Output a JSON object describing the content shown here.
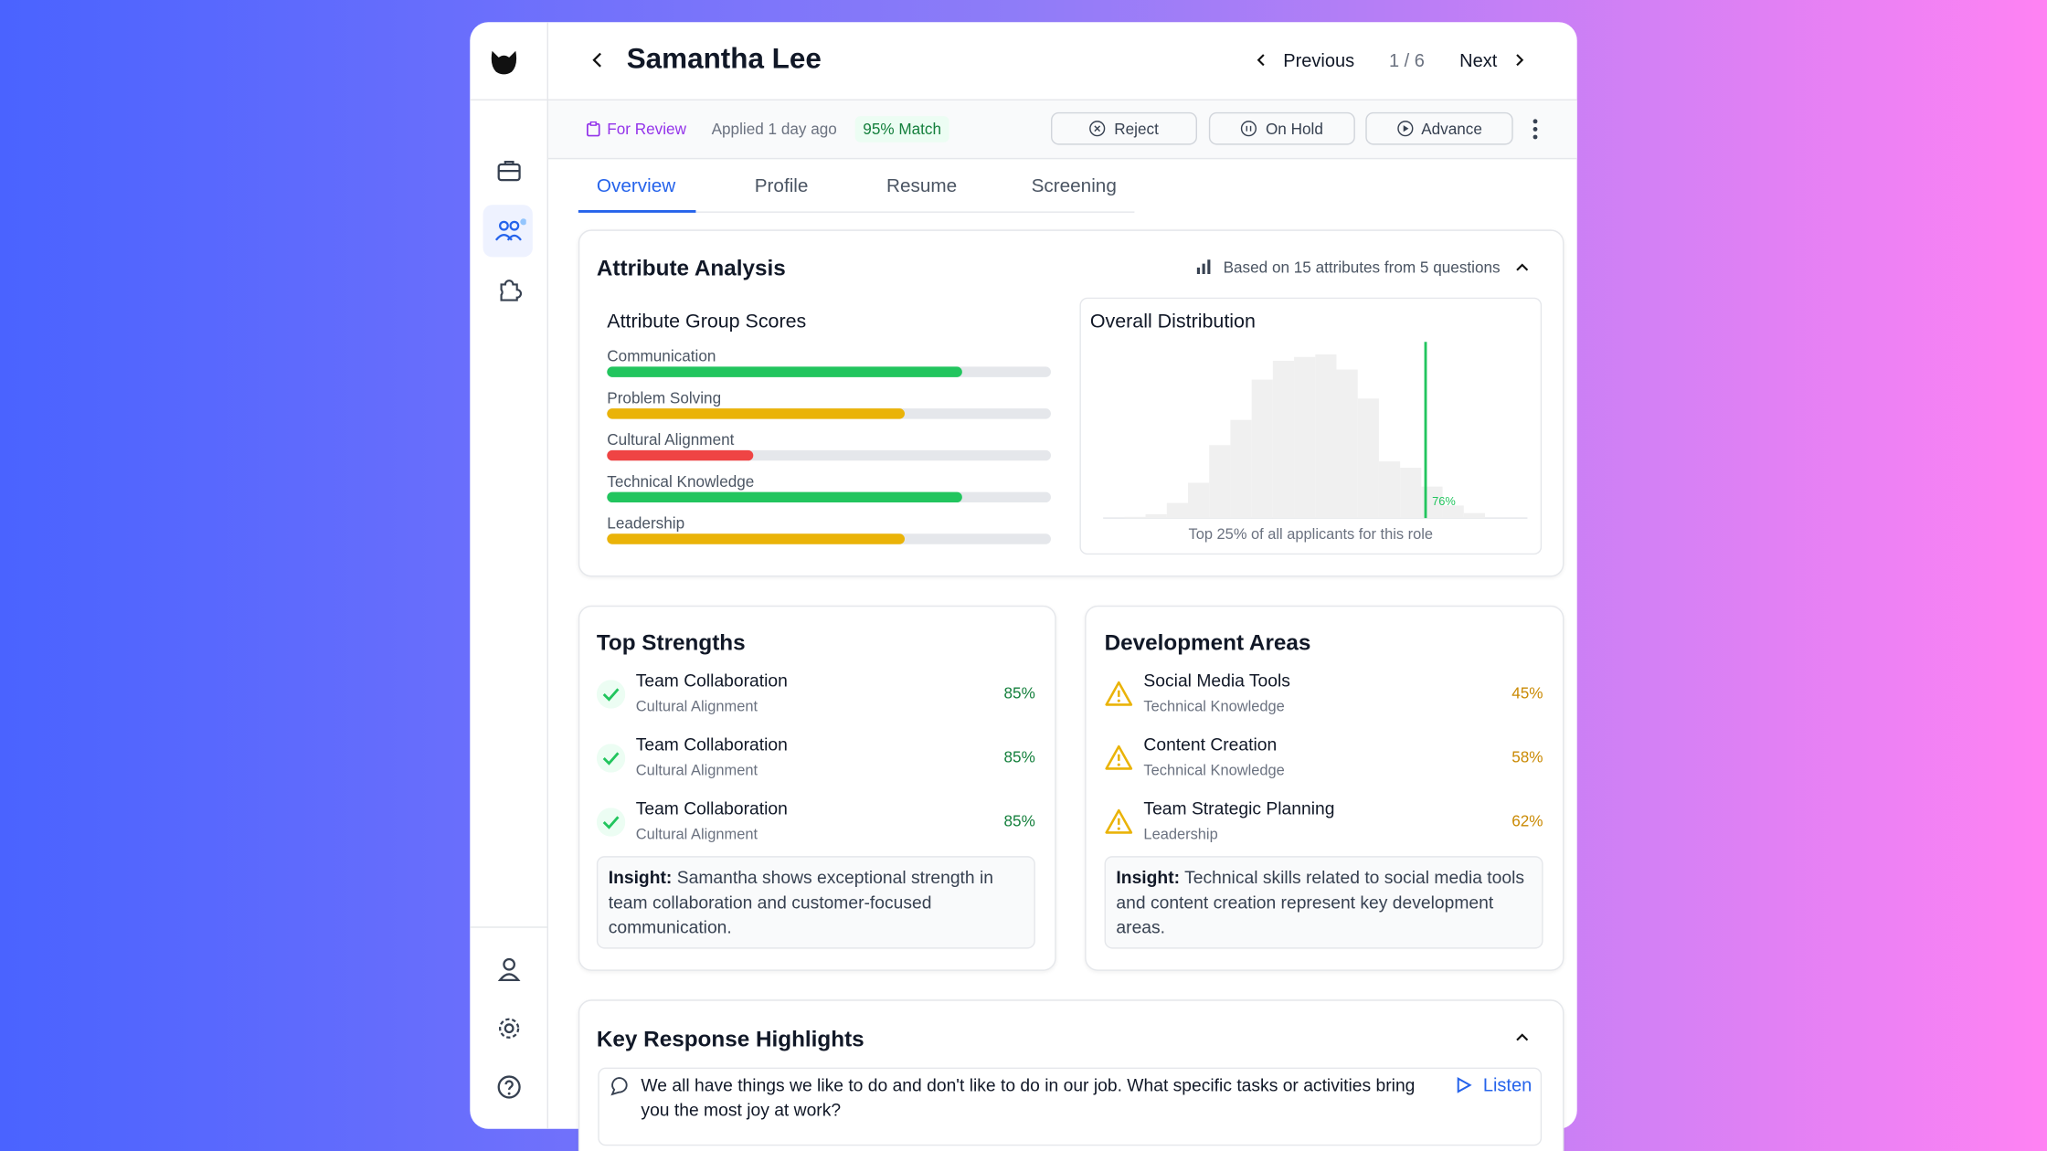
{
  "header": {
    "name": "Samantha Lee",
    "previous": "Previous",
    "position": "1 / 6",
    "next": "Next"
  },
  "status": {
    "stage": "For Review",
    "applied": "Applied 1 day ago",
    "match": "95% Match",
    "actions": [
      "Reject",
      "On Hold",
      "Advance"
    ]
  },
  "tabs": [
    "Overview",
    "Profile",
    "Resume",
    "Screening"
  ],
  "attribute_analysis": {
    "title": "Attribute Analysis",
    "basis": "Based on 15 attributes from 5 questions",
    "group_scores": {
      "title": "Attribute Group Scores",
      "xlim": [
        0,
        100
      ],
      "groups": [
        {
          "name": "Communication",
          "value": 80,
          "color": "#22c55e"
        },
        {
          "name": "Problem Solving",
          "value": 67,
          "color": "#eab308"
        },
        {
          "name": "Cultural Alignment",
          "value": 33,
          "color": "#ef4444"
        },
        {
          "name": "Technical Knowledge",
          "value": 80,
          "color": "#22c55e"
        },
        {
          "name": "Leadership",
          "value": 67,
          "color": "#eab308"
        }
      ]
    },
    "distribution": {
      "title": "Overall Distribution",
      "xlim": [
        0,
        100
      ],
      "ylim": [
        0,
        140
      ],
      "bins": [
        5,
        10,
        15,
        20,
        25,
        30,
        35,
        40,
        45,
        50,
        55,
        60,
        65,
        70,
        75,
        80,
        85,
        90
      ],
      "counts": [
        1,
        3,
        12,
        28,
        58,
        78,
        110,
        125,
        128,
        130,
        118,
        95,
        45,
        40,
        25,
        10,
        4
      ],
      "color": "#f0f0f0",
      "marker": 76,
      "marker_label": "76%",
      "marker_color": "#22c55e",
      "caption": "Top 25% of all applicants for this role"
    }
  },
  "strengths": {
    "title": "Top Strengths",
    "items": [
      {
        "name": "Team Collaboration",
        "group": "Cultural Alignment",
        "score": "85%"
      },
      {
        "name": "Team Collaboration",
        "group": "Cultural Alignment",
        "score": "85%"
      },
      {
        "name": "Team Collaboration",
        "group": "Cultural Alignment",
        "score": "85%"
      }
    ],
    "insight_label": "Insight:",
    "insight": "Samantha shows exceptional strength in team collaboration and customer-focused communication."
  },
  "development": {
    "title": "Development Areas",
    "items": [
      {
        "name": "Social Media Tools",
        "group": "Technical Knowledge",
        "score": "45%"
      },
      {
        "name": "Content Creation",
        "group": "Technical Knowledge",
        "score": "58%"
      },
      {
        "name": "Team Strategic Planning",
        "group": "Leadership",
        "score": "62%"
      }
    ],
    "insight_label": "Insight:",
    "insight": "Technical skills related to social media tools and content creation represent key development areas."
  },
  "highlights": {
    "title": "Key Response Highlights",
    "question": "We all have things we like to do and don't like to do in our job. What specific tasks or activities bring you the most joy at work?",
    "listen": "Listen"
  }
}
